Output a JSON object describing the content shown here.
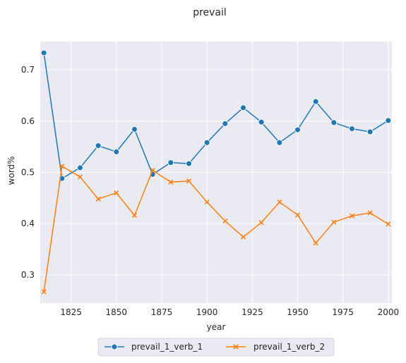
{
  "chart_data": {
    "type": "line",
    "title": "prevail",
    "xlabel": "year",
    "ylabel": "word%",
    "xlim": [
      1808,
      2002
    ],
    "ylim": [
      0.245,
      0.755
    ],
    "xticks": [
      1825,
      1850,
      1875,
      1900,
      1925,
      1950,
      1975,
      2000
    ],
    "yticks": [
      0.3,
      0.4,
      0.5,
      0.6,
      0.7
    ],
    "xtick_labels": [
      "1825",
      "1850",
      "1875",
      "1900",
      "1925",
      "1950",
      "1975",
      "2000"
    ],
    "ytick_labels": [
      "0.3",
      "0.4",
      "0.5",
      "0.6",
      "0.7"
    ],
    "grid": true,
    "legend_position": "bottom-center",
    "x": [
      1810,
      1820,
      1830,
      1840,
      1850,
      1860,
      1870,
      1880,
      1890,
      1900,
      1910,
      1920,
      1930,
      1940,
      1950,
      1960,
      1970,
      1980,
      1990,
      2000
    ],
    "series": [
      {
        "name": "prevail_1_verb_1",
        "color": "#1f77b4",
        "marker": "circle",
        "values": [
          0.733,
          0.488,
          0.509,
          0.552,
          0.54,
          0.584,
          0.496,
          0.519,
          0.517,
          0.558,
          0.595,
          0.626,
          0.598,
          0.558,
          0.583,
          0.638,
          0.597,
          0.585,
          0.579,
          0.601
        ]
      },
      {
        "name": "prevail_1_verb_2",
        "color": "#ff7f0e",
        "marker": "x",
        "values": [
          0.267,
          0.512,
          0.491,
          0.448,
          0.46,
          0.416,
          0.504,
          0.481,
          0.483,
          0.442,
          0.405,
          0.374,
          0.402,
          0.442,
          0.417,
          0.362,
          0.403,
          0.415,
          0.421,
          0.399
        ]
      }
    ],
    "style": {
      "plot_background": "#eaeaf2",
      "grid_color": "#ffffff"
    }
  }
}
